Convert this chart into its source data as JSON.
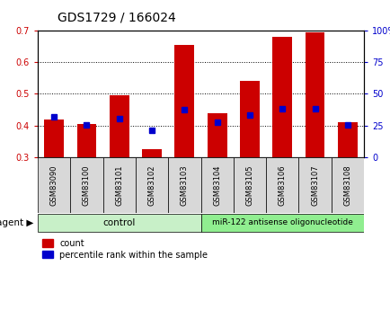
{
  "title": "GDS1729 / 166024",
  "samples": [
    "GSM83090",
    "GSM83100",
    "GSM83101",
    "GSM83102",
    "GSM83103",
    "GSM83104",
    "GSM83105",
    "GSM83106",
    "GSM83107",
    "GSM83108"
  ],
  "red_values": [
    0.42,
    0.405,
    0.495,
    0.325,
    0.655,
    0.438,
    0.54,
    0.68,
    0.695,
    0.41
  ],
  "blue_values": [
    0.428,
    0.403,
    0.422,
    0.385,
    0.449,
    0.41,
    0.432,
    0.452,
    0.452,
    0.402
  ],
  "ylim_left": [
    0.3,
    0.7
  ],
  "ylim_right": [
    0,
    100
  ],
  "yticks_left": [
    0.3,
    0.4,
    0.5,
    0.6,
    0.7
  ],
  "yticks_right": [
    0,
    25,
    50,
    75,
    100
  ],
  "ytick_labels_right": [
    "0",
    "25",
    "50",
    "75",
    "100%"
  ],
  "red_color": "#cc0000",
  "blue_color": "#0000cc",
  "bar_bottom": 0.3,
  "bar_width": 0.6,
  "control_color": "#c8f0c8",
  "mir_color": "#90ee90",
  "control_label": "control",
  "mir_label": "miR-122 antisense oligonucleotide",
  "legend_red": "count",
  "legend_blue": "percentile rank within the sample",
  "agent_label": "agent",
  "title_fontsize": 10,
  "tick_fontsize": 7,
  "grid_yticks": [
    0.4,
    0.5,
    0.6
  ]
}
